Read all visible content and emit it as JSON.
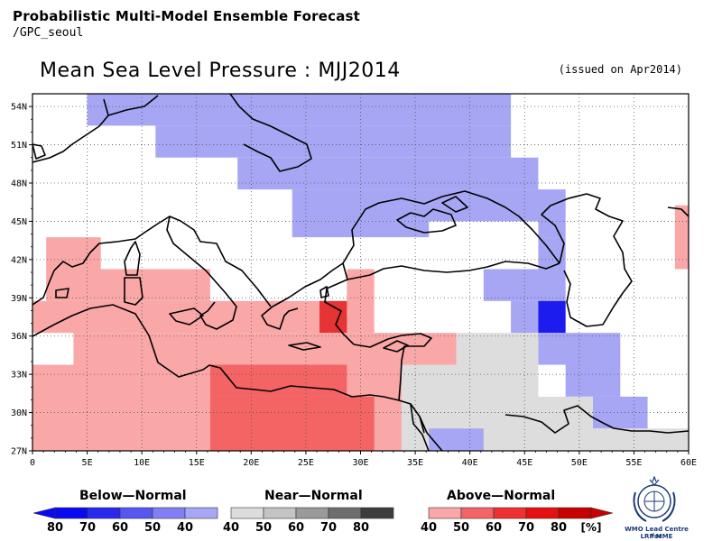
{
  "header": {
    "title": "Probabilistic Multi-Model Ensemble Forecast",
    "subtitle": "/GPC_seoul"
  },
  "map": {
    "title": "Mean Sea Level Pressure : MJJ2014",
    "issued": "(issued on Apr2014)",
    "lon_ticks": [
      "0",
      "5E",
      "10E",
      "15E",
      "20E",
      "25E",
      "30E",
      "35E",
      "40E",
      "45E",
      "50E",
      "55E",
      "60E"
    ],
    "lat_ticks": [
      "27N",
      "30N",
      "33N",
      "36N",
      "39N",
      "42N",
      "45N",
      "48N",
      "51N",
      "54N"
    ],
    "lon_range": [
      0,
      60
    ],
    "lat_range": [
      27,
      55
    ],
    "grid_step_deg": 2.5,
    "cell_lon_offset": 1.25,
    "colors": {
      "below_40": "#a6a6f5",
      "below_80": "#1c1cef",
      "near": "#dddddd",
      "above_40": "#f9a7a7",
      "above_50": "#f46464",
      "above_60": "#e63333"
    },
    "regions": [
      {
        "cat": "below_40",
        "lon": [
          5.0,
          43.75
        ],
        "lat": [
          52.5,
          55.0
        ]
      },
      {
        "cat": "below_40",
        "lon": [
          11.25,
          43.75
        ],
        "lat": [
          50.0,
          52.5
        ]
      },
      {
        "cat": "below_40",
        "lon": [
          18.75,
          46.25
        ],
        "lat": [
          47.5,
          50.0
        ]
      },
      {
        "cat": "below_40",
        "lon": [
          23.75,
          48.75
        ],
        "lat": [
          45.0,
          47.5
        ]
      },
      {
        "cat": "below_40",
        "lon": [
          23.75,
          36.25
        ],
        "lat": [
          43.75,
          45.0
        ]
      },
      {
        "cat": "below_40",
        "lon": [
          46.25,
          48.75
        ],
        "lat": [
          43.75,
          45.0
        ]
      },
      {
        "cat": "below_40",
        "lon": [
          46.25,
          48.75
        ],
        "lat": [
          41.25,
          43.75
        ]
      },
      {
        "cat": "below_40",
        "lon": [
          41.25,
          48.75
        ],
        "lat": [
          38.75,
          41.25
        ]
      },
      {
        "cat": "below_40",
        "lon": [
          43.75,
          46.25
        ],
        "lat": [
          36.25,
          38.75
        ]
      },
      {
        "cat": "below_80",
        "lon": [
          46.25,
          48.75
        ],
        "lat": [
          36.25,
          38.75
        ]
      },
      {
        "cat": "below_40",
        "lon": [
          46.25,
          53.75
        ],
        "lat": [
          33.75,
          36.25
        ]
      },
      {
        "cat": "below_40",
        "lon": [
          48.75,
          53.75
        ],
        "lat": [
          31.25,
          33.75
        ]
      },
      {
        "cat": "below_40",
        "lon": [
          51.25,
          56.25
        ],
        "lat": [
          28.75,
          31.25
        ]
      },
      {
        "cat": "above_40",
        "lon": [
          58.75,
          60.0
        ],
        "lat": [
          41.25,
          46.25
        ]
      },
      {
        "cat": "above_40",
        "lon": [
          1.25,
          6.25
        ],
        "lat": [
          41.25,
          43.75
        ]
      },
      {
        "cat": "above_40",
        "lon": [
          1.25,
          16.25
        ],
        "lat": [
          38.75,
          41.25
        ]
      },
      {
        "cat": "above_40",
        "lon": [
          0.0,
          28.75
        ],
        "lat": [
          36.25,
          38.75
        ]
      },
      {
        "cat": "above_40",
        "lon": [
          28.75,
          31.25
        ],
        "lat": [
          36.25,
          41.25
        ]
      },
      {
        "cat": "above_60",
        "lon": [
          26.25,
          28.75
        ],
        "lat": [
          36.25,
          38.75
        ]
      },
      {
        "cat": "above_40",
        "lon": [
          3.75,
          38.75
        ],
        "lat": [
          33.75,
          36.25
        ]
      },
      {
        "cat": "above_40",
        "lon": [
          0.0,
          33.75
        ],
        "lat": [
          27.0,
          33.75
        ]
      },
      {
        "cat": "above_50",
        "lon": [
          16.25,
          28.75
        ],
        "lat": [
          31.25,
          33.75
        ]
      },
      {
        "cat": "above_50",
        "lon": [
          16.25,
          31.25
        ],
        "lat": [
          27.0,
          31.25
        ]
      },
      {
        "cat": "near",
        "lon": [
          38.75,
          46.25
        ],
        "lat": [
          33.75,
          36.25
        ]
      },
      {
        "cat": "near",
        "lon": [
          33.75,
          46.25
        ],
        "lat": [
          27.0,
          33.75
        ]
      },
      {
        "cat": "near",
        "lon": [
          46.25,
          51.25
        ],
        "lat": [
          27.0,
          31.25
        ]
      },
      {
        "cat": "near",
        "lon": [
          51.25,
          60.0
        ],
        "lat": [
          27.0,
          28.75
        ]
      },
      {
        "cat": "below_40",
        "lon": [
          36.25,
          41.25
        ],
        "lat": [
          27.0,
          28.75
        ]
      }
    ]
  },
  "legend": {
    "below": {
      "title": "Below—Normal",
      "labels": [
        "80",
        "70",
        "60",
        "50",
        "40"
      ],
      "colors": [
        "#0a0af0",
        "#2828f0",
        "#5656f2",
        "#8080f4",
        "#a6a6f5"
      ]
    },
    "near": {
      "title": "Near—Normal",
      "labels": [
        "40",
        "50",
        "60",
        "70",
        "80"
      ],
      "colors": [
        "#dddddd",
        "#c4c4c4",
        "#9a9a9a",
        "#6e6e6e",
        "#3c3c3c"
      ]
    },
    "above": {
      "title": "Above—Normal",
      "labels": [
        "40",
        "50",
        "60",
        "70",
        "80"
      ],
      "unit": "[%]",
      "colors": [
        "#f9a7a7",
        "#f46464",
        "#f03030",
        "#e61010",
        "#c80000"
      ]
    }
  },
  "logo": {
    "line1": "WMO Lead Centre for",
    "line2": "LRF MME"
  }
}
